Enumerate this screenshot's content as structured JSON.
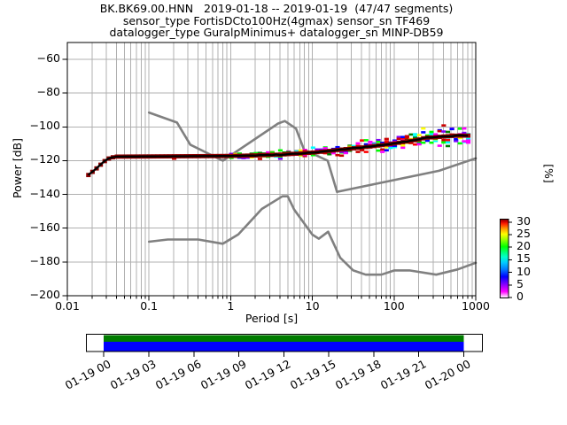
{
  "title": {
    "line1": "BK.BK69.00.HNN   2019-01-18 -- 2019-01-19  (47/47 segments)",
    "line2": "sensor_type FortisDCto100Hz(4gmax) sensor_sn TF469",
    "line3": "datalogger_type GuralpMinimus+ datalogger_sn MINP-DB59"
  },
  "axes": {
    "xlabel": "Period [s]",
    "ylabel": "Power [dB]"
  },
  "colorbar": {
    "label": "[%]",
    "ticks": [
      30,
      25,
      20,
      15,
      10,
      5,
      0
    ],
    "min": 0,
    "max": 31,
    "gradient": [
      [
        0.0,
        "#ffffff"
      ],
      [
        0.03,
        "#ffaaff"
      ],
      [
        0.08,
        "#ff00ff"
      ],
      [
        0.17,
        "#8800ff"
      ],
      [
        0.27,
        "#0000ff"
      ],
      [
        0.36,
        "#0077ff"
      ],
      [
        0.45,
        "#00ccff"
      ],
      [
        0.52,
        "#00ffcc"
      ],
      [
        0.58,
        "#00ff77"
      ],
      [
        0.65,
        "#00ff00"
      ],
      [
        0.74,
        "#99ff00"
      ],
      [
        0.81,
        "#ffff00"
      ],
      [
        0.88,
        "#ff9900"
      ],
      [
        0.94,
        "#ff2200"
      ],
      [
        0.97,
        "#cc0000"
      ],
      [
        1.0,
        "#7f0000"
      ]
    ]
  },
  "timeline": {
    "tick_labels": [
      "01-19 00",
      "01-19 03",
      "01-19 06",
      "01-19 09",
      "01-19 12",
      "01-19 15",
      "01-19 18",
      "01-19 21",
      "01-20 00"
    ],
    "coverage_color_top": "#007c00",
    "coverage_color_bottom": "#0000ff"
  },
  "chart_data": {
    "type": "heatmap",
    "subtype": "ppsd-probability-histogram",
    "title": "BK.BK69.00.HNN 2019-01-18 -- 2019-01-19 (47/47 segments)",
    "xlabel": "Period [s]",
    "ylabel": "Power [dB]",
    "xscale": "log",
    "xlim": [
      0.01,
      1000
    ],
    "ylim": [
      -200,
      -50
    ],
    "x_ticks": [
      0.01,
      0.1,
      1,
      10,
      100,
      1000
    ],
    "y_ticks": [
      -60,
      -80,
      -100,
      -120,
      -140,
      -160,
      -180,
      -200
    ],
    "grid": true,
    "colorbar_label": "[%]",
    "colorbar_range": [
      0,
      31
    ],
    "series": [
      {
        "name": "mode_psd",
        "color": "#000000",
        "points": [
          [
            0.018,
            -128.5
          ],
          [
            0.021,
            -126.0
          ],
          [
            0.024,
            -123.5
          ],
          [
            0.028,
            -120.5
          ],
          [
            0.033,
            -118.3
          ],
          [
            0.04,
            -117.6
          ],
          [
            0.1,
            -117.5
          ],
          [
            0.5,
            -117.3
          ],
          [
            1,
            -117.2
          ],
          [
            2,
            -116.9
          ],
          [
            4,
            -116.4
          ],
          [
            7,
            -115.7
          ],
          [
            10,
            -115.2
          ],
          [
            15,
            -114.4
          ],
          [
            25,
            -113.2
          ],
          [
            40,
            -112.2
          ],
          [
            70,
            -110.8
          ],
          [
            100,
            -109.8
          ],
          [
            150,
            -108.5
          ],
          [
            200,
            -107.5
          ],
          [
            240,
            -106.4
          ],
          [
            320,
            -106.1
          ],
          [
            420,
            -105.6
          ],
          [
            560,
            -105.2
          ],
          [
            850,
            -105.1
          ]
        ]
      },
      {
        "name": "NHNM",
        "color": "#808080",
        "points": [
          [
            0.1,
            -91.5
          ],
          [
            0.22,
            -97.4
          ],
          [
            0.32,
            -110.5
          ],
          [
            0.8,
            -120.0
          ],
          [
            3.8,
            -98.0
          ],
          [
            4.6,
            -96.5
          ],
          [
            6.3,
            -101.0
          ],
          [
            7.9,
            -113.5
          ],
          [
            15.4,
            -120.0
          ],
          [
            20.0,
            -138.5
          ],
          [
            354.8,
            -126.0
          ],
          [
            1000,
            -118.6
          ]
        ]
      },
      {
        "name": "NLNM",
        "color": "#808080",
        "points": [
          [
            0.1,
            -168.0
          ],
          [
            0.17,
            -166.7
          ],
          [
            0.4,
            -166.7
          ],
          [
            0.8,
            -169.2
          ],
          [
            1.24,
            -163.7
          ],
          [
            2.4,
            -148.6
          ],
          [
            4.3,
            -141.1
          ],
          [
            5.0,
            -141.1
          ],
          [
            6.0,
            -149.0
          ],
          [
            10.0,
            -163.8
          ],
          [
            12.0,
            -166.2
          ],
          [
            15.6,
            -162.1
          ],
          [
            21.9,
            -177.5
          ],
          [
            31.6,
            -185.0
          ],
          [
            45.0,
            -187.5
          ],
          [
            70.0,
            -187.5
          ],
          [
            101.0,
            -185.0
          ],
          [
            154.0,
            -185.0
          ],
          [
            328.0,
            -187.5
          ],
          [
            600.0,
            -184.4
          ],
          [
            1000,
            -180.5
          ]
        ]
      }
    ],
    "histogram": {
      "period_range": [
        0.018,
        850
      ],
      "core_color": "#8b0000",
      "cell_palette": [
        "#0000ff",
        "#00ffff",
        "#00ff00",
        "#ff00ff",
        "#0000ff",
        "#00ffff",
        "#00ff00",
        "#ff00ff",
        "#ffff00",
        "#ff0000",
        "#008000",
        "#8000ff",
        "#cc0000"
      ],
      "spread_db": [
        [
          0.018,
          0.9
        ],
        [
          0.04,
          0.9
        ],
        [
          0.5,
          1.1
        ],
        [
          2,
          1.4
        ],
        [
          6,
          1.9
        ],
        [
          15,
          2.3
        ],
        [
          40,
          2.9
        ],
        [
          100,
          3.6
        ],
        [
          300,
          4.3
        ],
        [
          850,
          4.6
        ]
      ]
    },
    "legend": "none"
  }
}
